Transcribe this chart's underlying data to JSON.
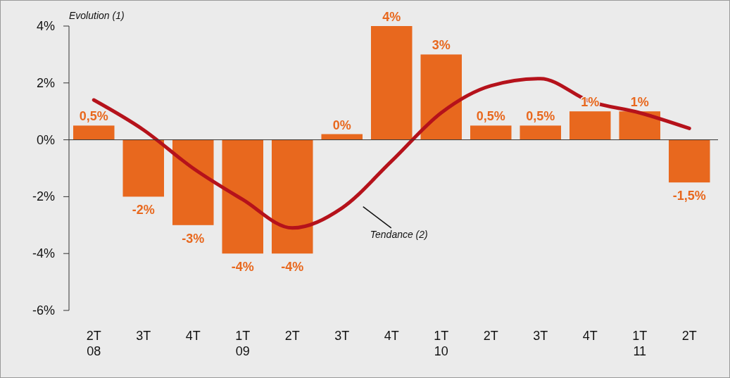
{
  "chart_data": {
    "type": "bar",
    "ylabel": "Evolution (1)",
    "categories": [
      "2T\n08",
      "3T",
      "4T",
      "1T\n09",
      "2T",
      "3T",
      "4T",
      "1T\n10",
      "2T",
      "3T",
      "4T",
      "1T\n11",
      "2T"
    ],
    "series": [
      {
        "color": "#e8681e",
        "values": [
          0.5,
          -2,
          -3,
          -4,
          -4,
          0.2,
          4,
          3,
          0.5,
          0.5,
          1,
          1,
          -1.5
        ],
        "value_labels": [
          "0,5%",
          "-2%",
          "-3%",
          "-4%",
          "-4%",
          "0%",
          "4%",
          "3%",
          "0,5%",
          "0,5%",
          "1%",
          "1%",
          "-1,5%"
        ]
      },
      {
        "type": "line",
        "name": "Tendance (2)",
        "color": "#b5121b",
        "values": [
          1.4,
          0.35,
          -1.0,
          -2.1,
          -3.1,
          -2.4,
          -0.75,
          0.95,
          1.9,
          2.15,
          1.35,
          0.95,
          0.4
        ]
      }
    ],
    "ylim": [
      -6,
      4
    ],
    "yticks": [
      {
        "value": -6,
        "label": "-6%"
      },
      {
        "value": -4,
        "label": "-4%"
      },
      {
        "value": -2,
        "label": "-2%"
      },
      {
        "value": 0,
        "label": "0%"
      },
      {
        "value": 2,
        "label": "2%"
      },
      {
        "value": 4,
        "label": "4%"
      }
    ]
  }
}
